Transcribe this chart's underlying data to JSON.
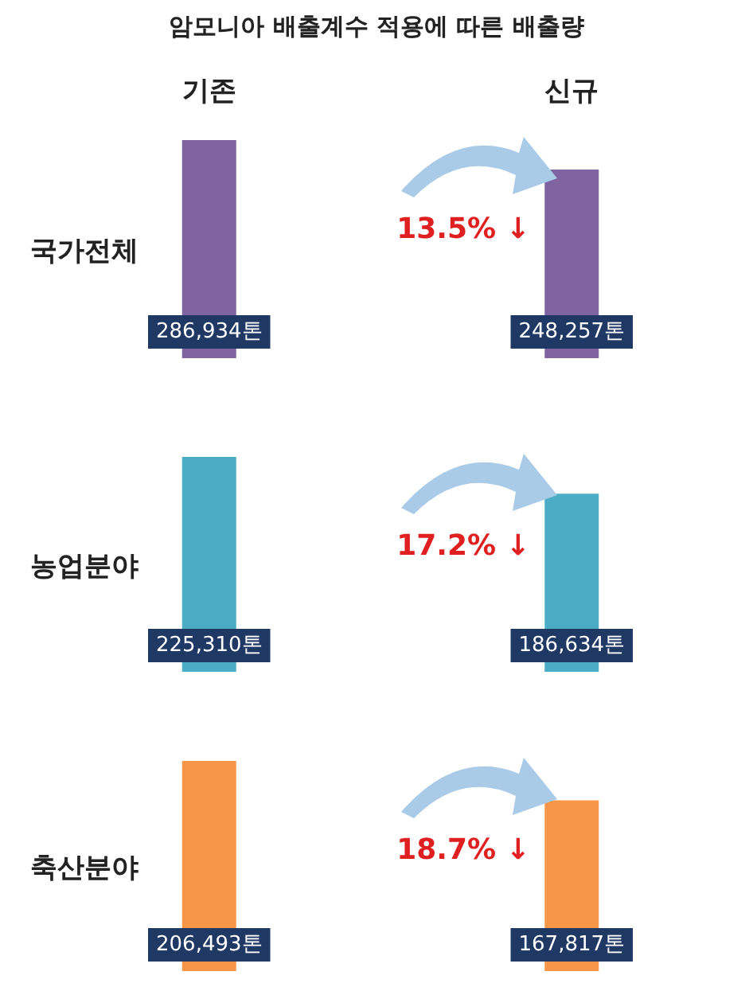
{
  "chart_data": [
    {
      "type": "bar",
      "title": "암모니아 배출계수 적용에 따른 배출량",
      "ylabel": "국가전체",
      "categories": [
        "기존",
        "신규"
      ],
      "values": [
        286934,
        248257
      ],
      "colors": [
        "#8064a2",
        "#8064a2"
      ],
      "value_labels": [
        "286,934톤",
        "248,257톤"
      ],
      "annotations": [
        "13.5% ↓"
      ],
      "tick_labels": "x"
    },
    {
      "type": "bar",
      "ylabel": "농업분야",
      "categories": [
        null,
        null
      ],
      "values": [
        225310,
        186634
      ],
      "colors": [
        "#4bacc6",
        "#4bacc6"
      ],
      "value_labels": [
        "225,310톤",
        "186,634톤"
      ],
      "annotations": [
        "17.2% ↓"
      ],
      "tick_labels": false
    },
    {
      "type": "bar",
      "ylabel": "축산분야",
      "categories": [
        null,
        null
      ],
      "values": [
        206493,
        167817
      ],
      "colors": [
        "#f79646",
        "#f79646"
      ],
      "value_labels": [
        "206,493톤",
        "167,817톤"
      ],
      "annotations": [
        "18.7% ↓"
      ],
      "tick_labels": false
    }
  ]
}
